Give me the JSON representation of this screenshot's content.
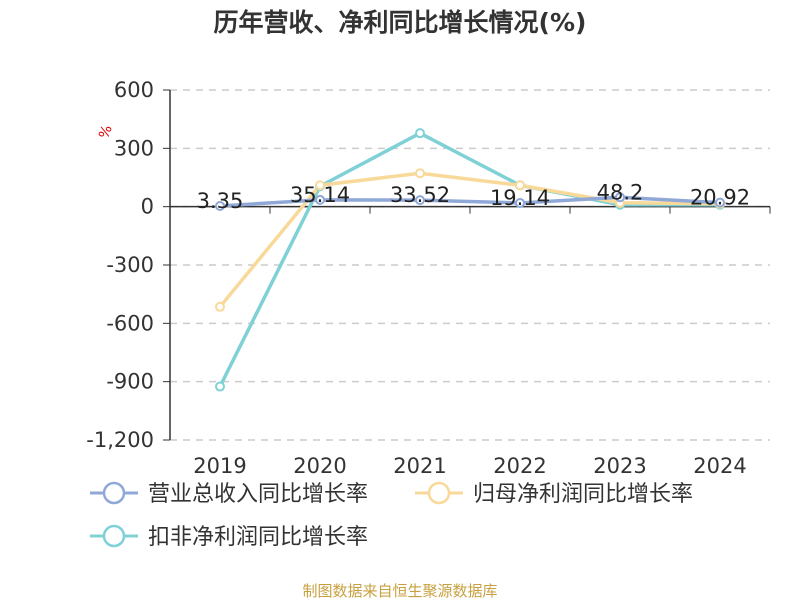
{
  "chart_data": {
    "type": "line",
    "title": "历年营收、净利同比增长情况(%)",
    "ylabel": "%",
    "categories": [
      "2019",
      "2020",
      "2021",
      "2022",
      "2023",
      "2024"
    ],
    "yticks": [
      "600",
      "300",
      "0",
      "-300",
      "-600",
      "-900",
      "-1,200"
    ],
    "ylim": [
      -1200,
      600
    ],
    "grid": true,
    "legend_position": "bottom",
    "series": [
      {
        "name": "营业总收入同比增长率",
        "color": "#8fa8d8",
        "values": [
          3.35,
          35.14,
          33.52,
          19.14,
          48.2,
          20.92
        ],
        "labels": [
          "3.35",
          "35.14",
          "33.52",
          "19.14",
          "48.2",
          "20.92"
        ]
      },
      {
        "name": "归母净利润同比增长率",
        "color": "#f9d99a",
        "values": [
          -515,
          110,
          172,
          110,
          20,
          15
        ]
      },
      {
        "name": "扣非净利润同比增长率",
        "color": "#7fd1d6",
        "values": [
          -925,
          105,
          378,
          110,
          10,
          10
        ]
      }
    ],
    "source": "制图数据来自恒生聚源数据库"
  }
}
